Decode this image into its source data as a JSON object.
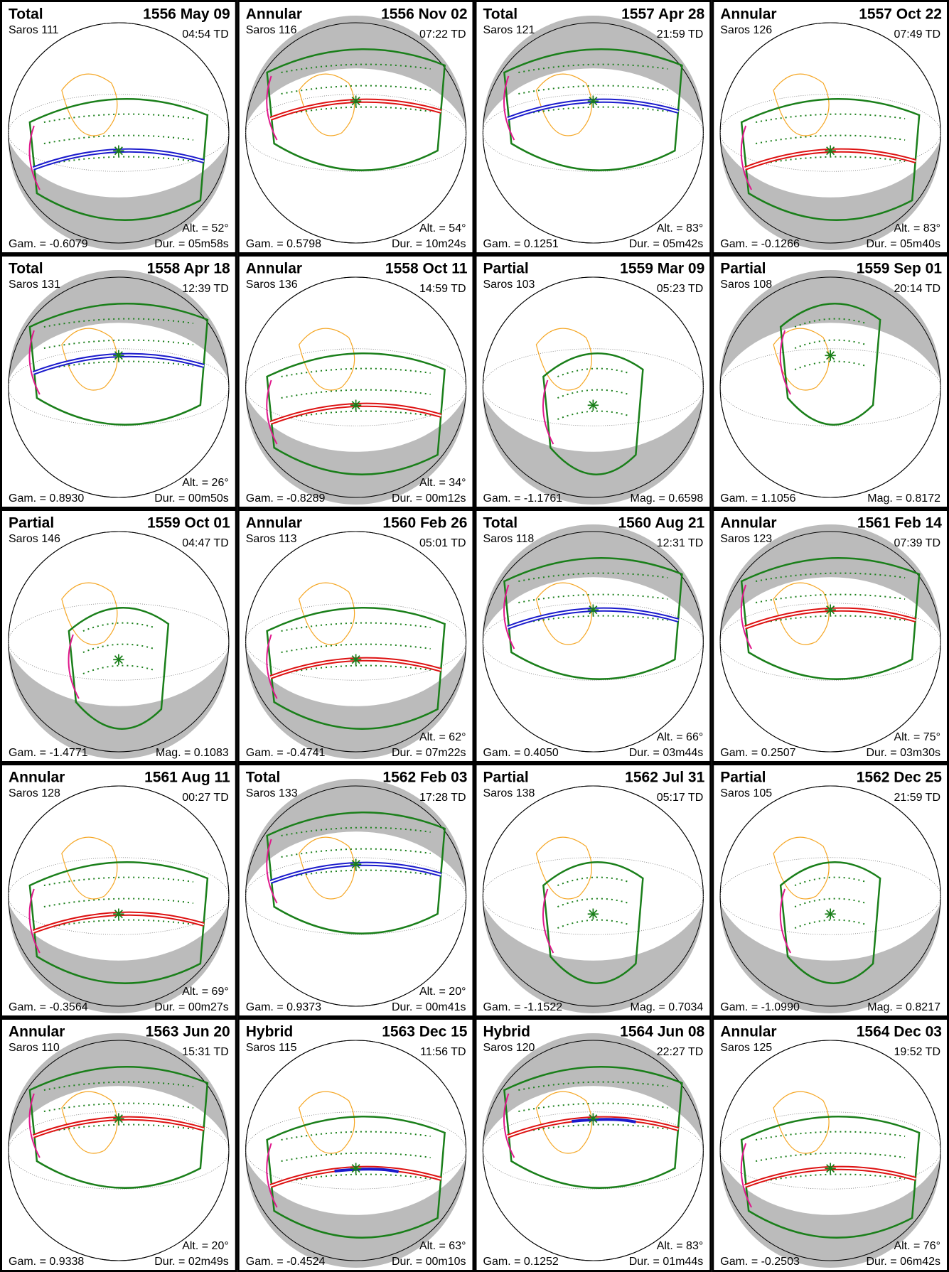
{
  "panels": [
    {
      "type": "Total",
      "date": "1556 May 09",
      "saros": "Saros 111",
      "time": "04:54 TD",
      "altitude": "Alt. = 52°",
      "gamma": "Gam. = -0.6079",
      "duration": "Dur. = 05m58s"
    },
    {
      "type": "Annular",
      "date": "1556 Nov 02",
      "saros": "Saros 116",
      "time": "07:22 TD",
      "altitude": "Alt. = 54°",
      "gamma": "Gam. = 0.5798",
      "duration": "Dur. = 10m24s"
    },
    {
      "type": "Total",
      "date": "1557 Apr 28",
      "saros": "Saros 121",
      "time": "21:59 TD",
      "altitude": "Alt. = 83°",
      "gamma": "Gam. = 0.1251",
      "duration": "Dur. = 05m42s"
    },
    {
      "type": "Annular",
      "date": "1557 Oct 22",
      "saros": "Saros 126",
      "time": "07:49 TD",
      "altitude": "Alt. = 83°",
      "gamma": "Gam. = -0.1266",
      "duration": "Dur. = 05m40s"
    },
    {
      "type": "Total",
      "date": "1558 Apr 18",
      "saros": "Saros 131",
      "time": "12:39 TD",
      "altitude": "Alt. = 26°",
      "gamma": "Gam. = 0.8930",
      "duration": "Dur. = 00m50s"
    },
    {
      "type": "Annular",
      "date": "1558 Oct 11",
      "saros": "Saros 136",
      "time": "14:59 TD",
      "altitude": "Alt. = 34°",
      "gamma": "Gam. = -0.8289",
      "duration": "Dur. = 00m12s"
    },
    {
      "type": "Partial",
      "date": "1559 Mar 09",
      "saros": "Saros 103",
      "time": "05:23 TD",
      "gamma": "Gam. = -1.1761",
      "magnitude": "Mag. = 0.6598"
    },
    {
      "type": "Partial",
      "date": "1559 Sep 01",
      "saros": "Saros 108",
      "time": "20:14 TD",
      "gamma": "Gam. = 1.1056",
      "magnitude": "Mag. = 0.8172"
    },
    {
      "type": "Partial",
      "date": "1559 Oct 01",
      "saros": "Saros 146",
      "time": "04:47 TD",
      "gamma": "Gam. = -1.4771",
      "magnitude": "Mag. = 0.1083"
    },
    {
      "type": "Annular",
      "date": "1560 Feb 26",
      "saros": "Saros 113",
      "time": "05:01 TD",
      "altitude": "Alt. = 62°",
      "gamma": "Gam. = -0.4741",
      "duration": "Dur. = 07m22s"
    },
    {
      "type": "Total",
      "date": "1560 Aug 21",
      "saros": "Saros 118",
      "time": "12:31 TD",
      "altitude": "Alt. = 66°",
      "gamma": "Gam. = 0.4050",
      "duration": "Dur. = 03m44s"
    },
    {
      "type": "Annular",
      "date": "1561 Feb 14",
      "saros": "Saros 123",
      "time": "07:39 TD",
      "altitude": "Alt. = 75°",
      "gamma": "Gam. = 0.2507",
      "duration": "Dur. = 03m30s"
    },
    {
      "type": "Annular",
      "date": "1561 Aug 11",
      "saros": "Saros 128",
      "time": "00:27 TD",
      "altitude": "Alt. = 69°",
      "gamma": "Gam. = -0.3564",
      "duration": "Dur. = 00m27s"
    },
    {
      "type": "Total",
      "date": "1562 Feb 03",
      "saros": "Saros 133",
      "time": "17:28 TD",
      "altitude": "Alt. = 20°",
      "gamma": "Gam. = 0.9373",
      "duration": "Dur. = 00m41s"
    },
    {
      "type": "Partial",
      "date": "1562 Jul 31",
      "saros": "Saros 138",
      "time": "05:17 TD",
      "gamma": "Gam. = -1.1522",
      "magnitude": "Mag. = 0.7034"
    },
    {
      "type": "Partial",
      "date": "1562 Dec 25",
      "saros": "Saros 105",
      "time": "21:59 TD",
      "gamma": "Gam. = -1.0990",
      "magnitude": "Mag. = 0.8217"
    },
    {
      "type": "Annular",
      "date": "1563 Jun 20",
      "saros": "Saros 110",
      "time": "15:31 TD",
      "altitude": "Alt. = 20°",
      "gamma": "Gam. = 0.9338",
      "duration": "Dur. = 02m49s"
    },
    {
      "type": "Hybrid",
      "date": "1563 Dec 15",
      "saros": "Saros 115",
      "time": "11:56 TD",
      "altitude": "Alt. = 63°",
      "gamma": "Gam. = -0.4524",
      "duration": "Dur. = 00m10s"
    },
    {
      "type": "Hybrid",
      "date": "1564 Jun 08",
      "saros": "Saros 120",
      "time": "22:27 TD",
      "altitude": "Alt. = 83°",
      "gamma": "Gam. = 0.1252",
      "duration": "Dur. = 01m44s"
    },
    {
      "type": "Annular",
      "date": "1564 Dec 03",
      "saros": "Saros 125",
      "time": "19:52 TD",
      "altitude": "Alt. = 76°",
      "gamma": "Gam. = -0.2503",
      "duration": "Dur. = 06m42s"
    }
  ]
}
